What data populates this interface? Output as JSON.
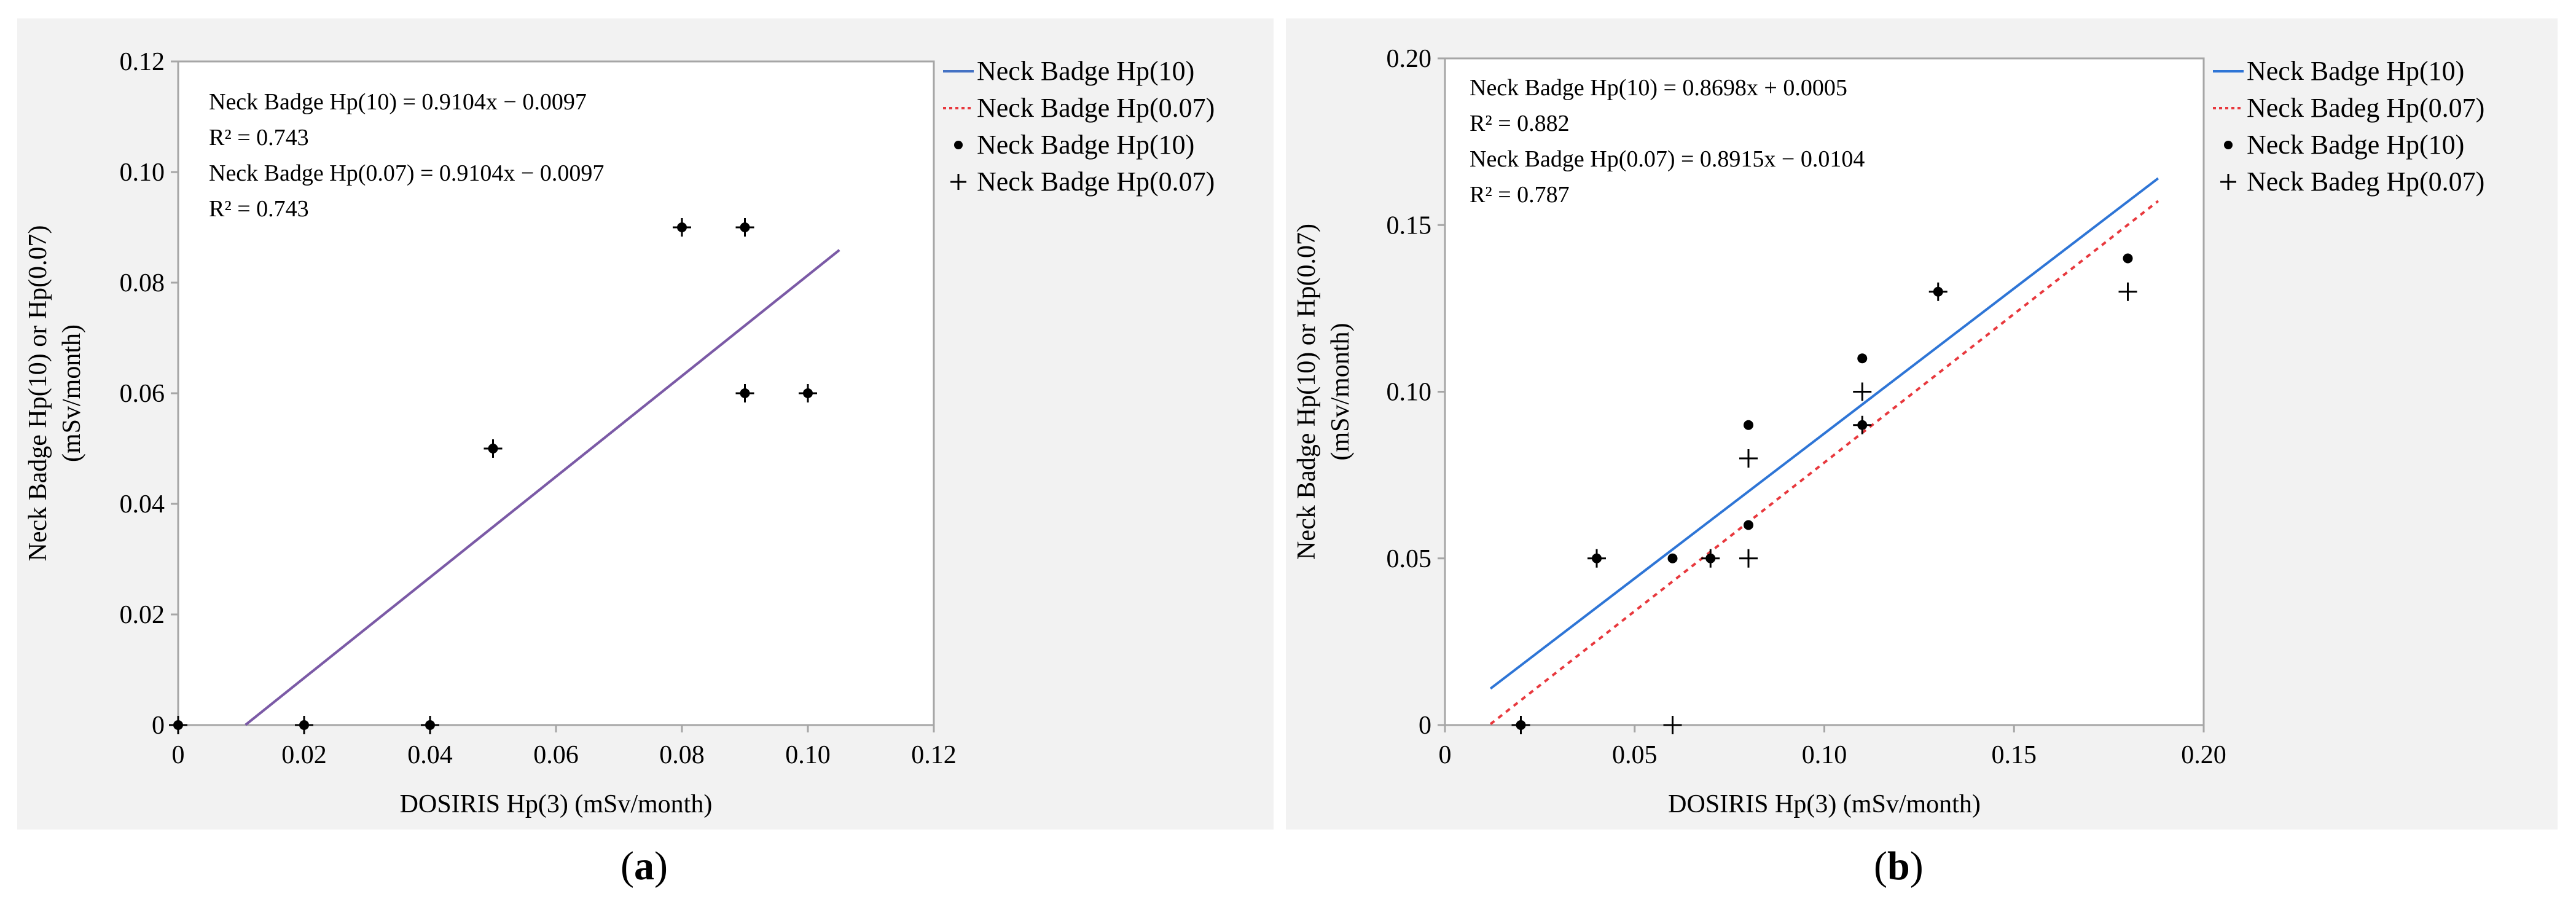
{
  "chart_data": [
    {
      "type": "scatter",
      "panel_label": "a",
      "xlabel": "DOSIRIS Hp(3) (mSv/month)",
      "ylabel_line1": "Neck Badge Hp(10) or Hp(0.07)",
      "ylabel_line2": "(mSv/month)",
      "xlim": [
        0,
        0.12
      ],
      "ylim": [
        0,
        0.12
      ],
      "xticks": [
        0,
        0.02,
        0.04,
        0.06,
        0.08,
        0.1,
        0.12
      ],
      "xtick_labels": [
        "0",
        "0.02",
        "0.04",
        "0.06",
        "0.08",
        "0.10",
        "0.12"
      ],
      "yticks": [
        0,
        0.02,
        0.04,
        0.06,
        0.08,
        0.1,
        0.12
      ],
      "ytick_labels": [
        "0",
        "0.02",
        "0.04",
        "0.06",
        "0.08",
        "0.10",
        "0.12"
      ],
      "annotations": [
        "Neck Badge Hp(10) = 0.9104x − 0.0097",
        "R² = 0.743",
        "Neck Badge Hp(0.07) = 0.9104x − 0.0097",
        "R² = 0.743"
      ],
      "legend": [
        {
          "label": "Neck Badge Hp(10)",
          "style": "line-solid",
          "color": "#4472c4"
        },
        {
          "label": "Neck Badge Hp(0.07)",
          "style": "line-dotted",
          "color": "#e8383d"
        },
        {
          "label": "Neck Badge Hp(10)",
          "style": "marker-dot",
          "color": "#000000"
        },
        {
          "label": "Neck Badge Hp(0.07)",
          "style": "marker-plus",
          "color": "#000000"
        }
      ],
      "fits": [
        {
          "name": "Neck Badge Hp(10)",
          "slope": 0.9104,
          "intercept": -0.0097,
          "x_range": [
            0.0107,
            0.105
          ],
          "color": "#7b5aa6",
          "dash": false
        },
        {
          "name": "Neck Badge Hp(0.07)",
          "slope": 0.9104,
          "intercept": -0.0097,
          "x_range": [
            0.0107,
            0.105
          ],
          "color": "#7b5aa6",
          "dash": false
        }
      ],
      "series": [
        {
          "name": "Neck Badge Hp(10)",
          "marker": "dot",
          "x": [
            0,
            0.02,
            0.04,
            0.05,
            0.08,
            0.09,
            0.09,
            0.1
          ],
          "y": [
            0,
            0,
            0,
            0.05,
            0.09,
            0.09,
            0.06,
            0.06
          ]
        },
        {
          "name": "Neck Badge Hp(0.07)",
          "marker": "plus",
          "x": [
            0,
            0.02,
            0.04,
            0.05,
            0.08,
            0.09,
            0.09,
            0.1
          ],
          "y": [
            0,
            0,
            0,
            0.05,
            0.09,
            0.09,
            0.06,
            0.06
          ]
        }
      ]
    },
    {
      "type": "scatter",
      "panel_label": "b",
      "xlabel": "DOSIRIS Hp(3) (mSv/month)",
      "ylabel_line1": "Neck Badge Hp(10) or Hp(0.07)",
      "ylabel_line2": "(mSv/month)",
      "xlim": [
        0,
        0.2
      ],
      "ylim": [
        0,
        0.2
      ],
      "xticks": [
        0,
        0.05,
        0.1,
        0.15,
        0.2
      ],
      "xtick_labels": [
        "0",
        "0.05",
        "0.10",
        "0.15",
        "0.20"
      ],
      "yticks": [
        0,
        0.05,
        0.1,
        0.15,
        0.2
      ],
      "ytick_labels": [
        "0",
        "0.05",
        "0.10",
        "0.15",
        "0.20"
      ],
      "annotations": [
        "Neck Badge Hp(10) = 0.8698x + 0.0005",
        "R² = 0.882",
        "Neck Badge Hp(0.07) = 0.8915x − 0.0104",
        "R² = 0.787"
      ],
      "legend": [
        {
          "label": "Neck Badge Hp(10)",
          "style": "line-solid",
          "color": "#2e75d6"
        },
        {
          "label": "Neck Badeg Hp(0.07)",
          "style": "line-dotted",
          "color": "#e8383d"
        },
        {
          "label": "Neck Badge Hp(10)",
          "style": "marker-dot",
          "color": "#000000"
        },
        {
          "label": "Neck Badeg Hp(0.07)",
          "style": "marker-plus",
          "color": "#000000"
        }
      ],
      "fits": [
        {
          "name": "Neck Badge Hp(10)",
          "slope": 0.8698,
          "intercept": 0.0005,
          "x_range": [
            0.012,
            0.188
          ],
          "color": "#2e75d6",
          "dash": false
        },
        {
          "name": "Neck Badeg Hp(0.07)",
          "slope": 0.8915,
          "intercept": -0.0104,
          "x_range": [
            0.012,
            0.188
          ],
          "color": "#e8383d",
          "dash": true
        }
      ],
      "series": [
        {
          "name": "Neck Badge Hp(10)",
          "marker": "dot",
          "x": [
            0.02,
            0.04,
            0.06,
            0.07,
            0.08,
            0.08,
            0.11,
            0.11,
            0.13,
            0.18
          ],
          "y": [
            0,
            0.05,
            0.05,
            0.05,
            0.06,
            0.09,
            0.09,
            0.11,
            0.13,
            0.14
          ]
        },
        {
          "name": "Neck Badeg Hp(0.07)",
          "marker": "plus",
          "x": [
            0.02,
            0.04,
            0.06,
            0.07,
            0.08,
            0.08,
            0.11,
            0.11,
            0.13,
            0.18
          ],
          "y": [
            0,
            0.05,
            0,
            0.05,
            0.05,
            0.08,
            0.09,
            0.1,
            0.13,
            0.13
          ]
        }
      ]
    }
  ]
}
